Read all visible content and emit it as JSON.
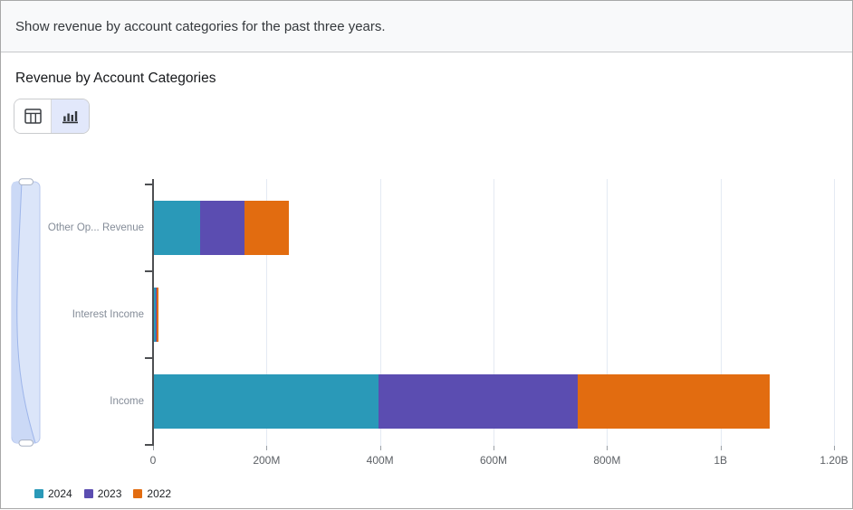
{
  "query_bar": {
    "text": "Show revenue by account categories for the past three years."
  },
  "panel": {
    "title": "Revenue by Account Categories",
    "view_toggle": [
      {
        "name": "table-view-button",
        "icon": "table-icon",
        "selected": false
      },
      {
        "name": "chart-view-button",
        "icon": "bar-chart-icon",
        "selected": true
      }
    ]
  },
  "colors": {
    "toggle_selected_bg": "#e2e8fb",
    "scrollbar_fill": "#dbe5f9",
    "scrollbar_wedge": "#cbd9f6",
    "scrollbar_border": "#b7c7ee",
    "gridline": "#e4eaf3",
    "axis": "#4d4f52"
  },
  "chart_data": {
    "type": "bar",
    "orientation": "horizontal",
    "stacked": true,
    "title": "Revenue by Account Categories",
    "xlabel": "",
    "ylabel": "",
    "grid": true,
    "categories": [
      "Other Op... Revenue",
      "Interest Income",
      "Income"
    ],
    "series": [
      {
        "name": "2024",
        "color": "#2A99B8",
        "values_millions": [
          82,
          3,
          395
        ]
      },
      {
        "name": "2023",
        "color": "#5B4DB1",
        "values_millions": [
          78,
          2,
          352
        ]
      },
      {
        "name": "2022",
        "color": "#E26C10",
        "values_millions": [
          78,
          3,
          338
        ]
      }
    ],
    "x_axis": {
      "min_millions": 0,
      "max_millions": 1200,
      "tick_values_millions": [
        0,
        200,
        400,
        600,
        800,
        1000,
        1200
      ],
      "tick_labels": [
        "0",
        "200M",
        "400M",
        "600M",
        "800M",
        "1B",
        "1.20B"
      ]
    },
    "legend": {
      "position": "bottom-left",
      "items": [
        "2024",
        "2023",
        "2022"
      ]
    }
  }
}
